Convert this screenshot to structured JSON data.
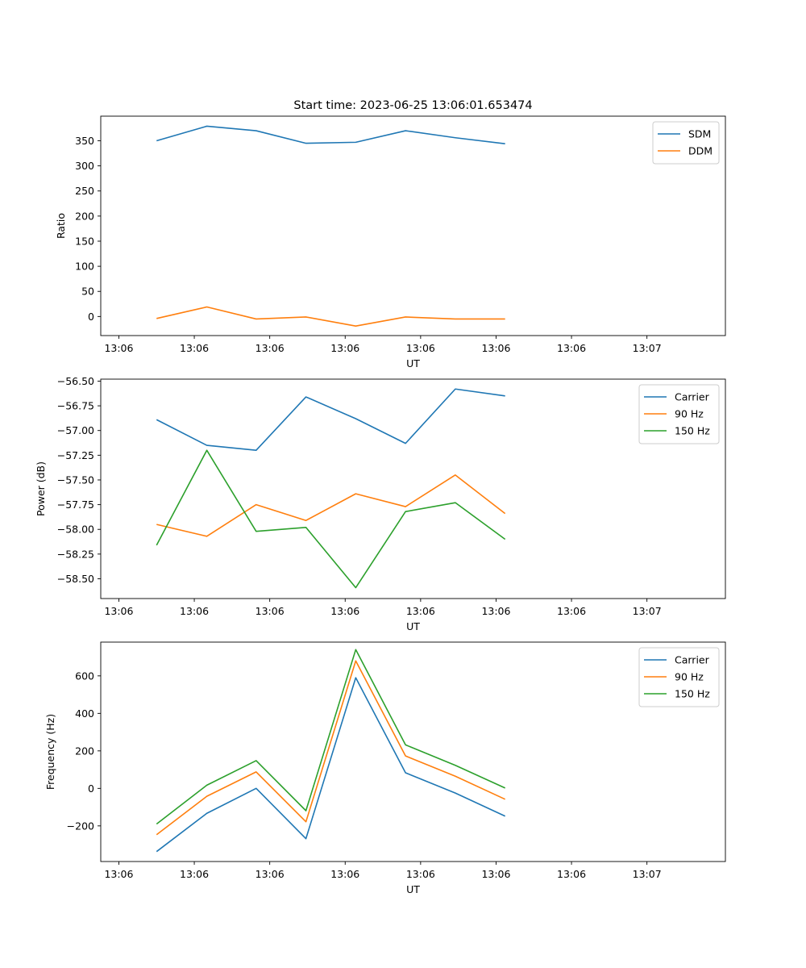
{
  "figure": {
    "title": "Start time: 2023-06-25 13:06:01.653474"
  },
  "chart_data": [
    {
      "type": "line",
      "title": "Start time: 2023-06-25 13:06:01.653474",
      "xlabel": "UT",
      "ylabel": "Ratio",
      "xtick_labels": [
        "13:06",
        "13:06",
        "13:06",
        "13:06",
        "13:06",
        "13:06",
        "13:06"
      ],
      "xtick_last": "13:07",
      "yticks": [
        0,
        50,
        100,
        150,
        200,
        250,
        300,
        350
      ],
      "ylim": [
        -38,
        399
      ],
      "xlim": [
        -0.24,
        8.04
      ],
      "x": [
        0.5,
        1.166,
        1.82,
        2.48,
        3.14,
        3.8,
        4.46,
        5.12
      ],
      "legend": "top-right",
      "grid": false,
      "series": [
        {
          "name": "SDM",
          "color": "#1f77b4",
          "values": [
            350,
            379,
            370,
            345,
            347,
            370,
            356,
            344
          ]
        },
        {
          "name": "DDM",
          "color": "#ff7f0e",
          "values": [
            -4,
            19,
            -5,
            -1,
            -19,
            -1,
            -5,
            -5
          ]
        }
      ]
    },
    {
      "type": "line",
      "xlabel": "UT",
      "ylabel": "Power (dB)",
      "xtick_labels": [
        "13:06",
        "13:06",
        "13:06",
        "13:06",
        "13:06",
        "13:06",
        "13:06"
      ],
      "xtick_last": "13:07",
      "yticks": [
        -58.5,
        -58.25,
        -58.0,
        -57.75,
        -57.5,
        -57.25,
        -57.0,
        -56.75,
        -56.5
      ],
      "ytick_labels": [
        "−58.50",
        "−58.25",
        "−58.00",
        "−57.75",
        "−57.50",
        "−57.25",
        "−57.00",
        "−56.75",
        "−56.50"
      ],
      "ylim": [
        -58.7,
        -56.48
      ],
      "xlim": [
        -0.24,
        8.04
      ],
      "x": [
        0.5,
        1.166,
        1.82,
        2.48,
        3.14,
        3.8,
        4.46,
        5.12
      ],
      "legend": "top-right",
      "grid": false,
      "series": [
        {
          "name": "Carrier",
          "color": "#1f77b4",
          "values": [
            -56.89,
            -57.15,
            -57.2,
            -56.66,
            -56.88,
            -57.13,
            -56.58,
            -56.65
          ]
        },
        {
          "name": "90 Hz",
          "color": "#ff7f0e",
          "values": [
            -57.95,
            -58.07,
            -57.75,
            -57.91,
            -57.64,
            -57.77,
            -57.45,
            -57.84
          ]
        },
        {
          "name": "150 Hz",
          "color": "#2ca02c",
          "values": [
            -58.16,
            -57.2,
            -58.02,
            -57.98,
            -58.59,
            -57.82,
            -57.73,
            -58.1
          ]
        }
      ]
    },
    {
      "type": "line",
      "xlabel": "UT",
      "ylabel": "Frequency (Hz)",
      "xtick_labels": [
        "13:06",
        "13:06",
        "13:06",
        "13:06",
        "13:06",
        "13:06",
        "13:06"
      ],
      "xtick_last": "13:07",
      "yticks": [
        -200,
        0,
        200,
        400,
        600
      ],
      "ytick_labels": [
        "−200",
        "0",
        "200",
        "400",
        "600"
      ],
      "ylim": [
        -390,
        780
      ],
      "xlim": [
        -0.24,
        8.04
      ],
      "x": [
        0.5,
        1.166,
        1.82,
        2.48,
        3.14,
        3.8,
        4.46,
        5.12
      ],
      "legend": "top-right",
      "grid": false,
      "series": [
        {
          "name": "Carrier",
          "color": "#1f77b4",
          "values": [
            -337,
            -133,
            0,
            -268,
            590,
            83,
            -25,
            -148
          ]
        },
        {
          "name": "90 Hz",
          "color": "#ff7f0e",
          "values": [
            -247,
            -42,
            88,
            -178,
            680,
            173,
            65,
            -58
          ]
        },
        {
          "name": "150 Hz",
          "color": "#2ca02c",
          "values": [
            -190,
            17,
            148,
            -119,
            740,
            232,
            123,
            2
          ]
        }
      ]
    }
  ]
}
